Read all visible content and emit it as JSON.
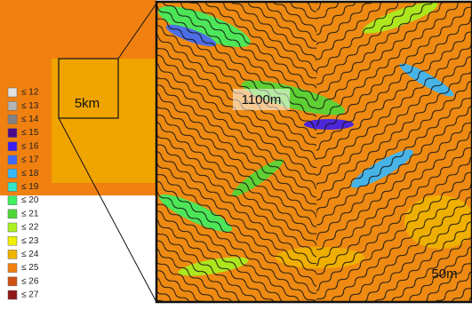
{
  "legend": {
    "items": [
      {
        "label": "≤ 12",
        "color": "#e2e2e2"
      },
      {
        "label": "≤ 13",
        "color": "#b4b4b4"
      },
      {
        "label": "≤ 14",
        "color": "#828282"
      },
      {
        "label": "≤ 15",
        "color": "#4a0a8a"
      },
      {
        "label": "≤ 16",
        "color": "#3c1cf0"
      },
      {
        "label": "≤ 17",
        "color": "#3c6cff"
      },
      {
        "label": "≤ 18",
        "color": "#36b8ff"
      },
      {
        "label": "≤ 19",
        "color": "#30e8c8"
      },
      {
        "label": "≤ 20",
        "color": "#3cf060"
      },
      {
        "label": "≤ 21",
        "color": "#50d838"
      },
      {
        "label": "≤ 22",
        "color": "#a8f020"
      },
      {
        "label": "≤ 23",
        "color": "#f0f000"
      },
      {
        "label": "≤ 24",
        "color": "#f0b400"
      },
      {
        "label": "≤ 25",
        "color": "#f08010"
      },
      {
        "label": "≤ 26",
        "color": "#d05010"
      },
      {
        "label": "≤ 27",
        "color": "#901818"
      }
    ]
  },
  "inset": {
    "label": "5km"
  },
  "map": {
    "labels": [
      "1100m",
      "50m"
    ]
  }
}
